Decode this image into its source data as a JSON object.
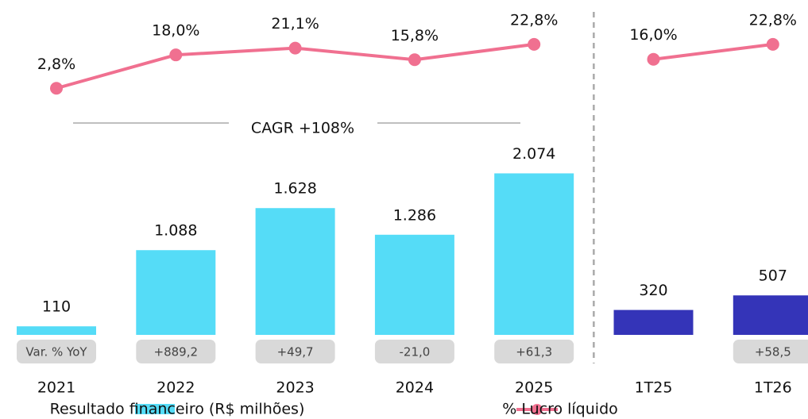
{
  "chart_data": {
    "type": "bar_line",
    "categories": [
      "2021",
      "2022",
      "2023",
      "2024",
      "2025",
      "1T25",
      "1T26"
    ],
    "series": [
      {
        "name": "Resultado financeiro (R$ milhões)",
        "type": "bar",
        "color": "#55dcf7",
        "colors": [
          "#55dcf7",
          "#55dcf7",
          "#55dcf7",
          "#55dcf7",
          "#55dcf7",
          "#3434b8",
          "#3434b8"
        ],
        "values": [
          110,
          1088,
          1628,
          1286,
          2074,
          320,
          507
        ],
        "value_labels": [
          "110",
          "1.088",
          "1.628",
          "1.286",
          "2.074",
          "320",
          "507"
        ]
      },
      {
        "name": "% Lucro líquido",
        "type": "line",
        "axis": "y2",
        "color": "#f07090",
        "values": [
          2.8,
          18.0,
          21.1,
          15.8,
          22.8,
          16.0,
          22.8
        ],
        "value_labels": [
          "2,8%",
          "18,0%",
          "21,1%",
          "15,8%",
          "22,8%",
          "16,0%",
          "22,8%"
        ]
      }
    ],
    "ylim": [
      0,
      4300
    ],
    "y2lim": [
      0,
      43
    ],
    "yoy_labels": [
      "Var. % YoY",
      "+889,2",
      "+49,7",
      "-21,0",
      "+61,3",
      null,
      "+58,5"
    ],
    "annotation": "CAGR +108%",
    "separator_after": "2025"
  }
}
